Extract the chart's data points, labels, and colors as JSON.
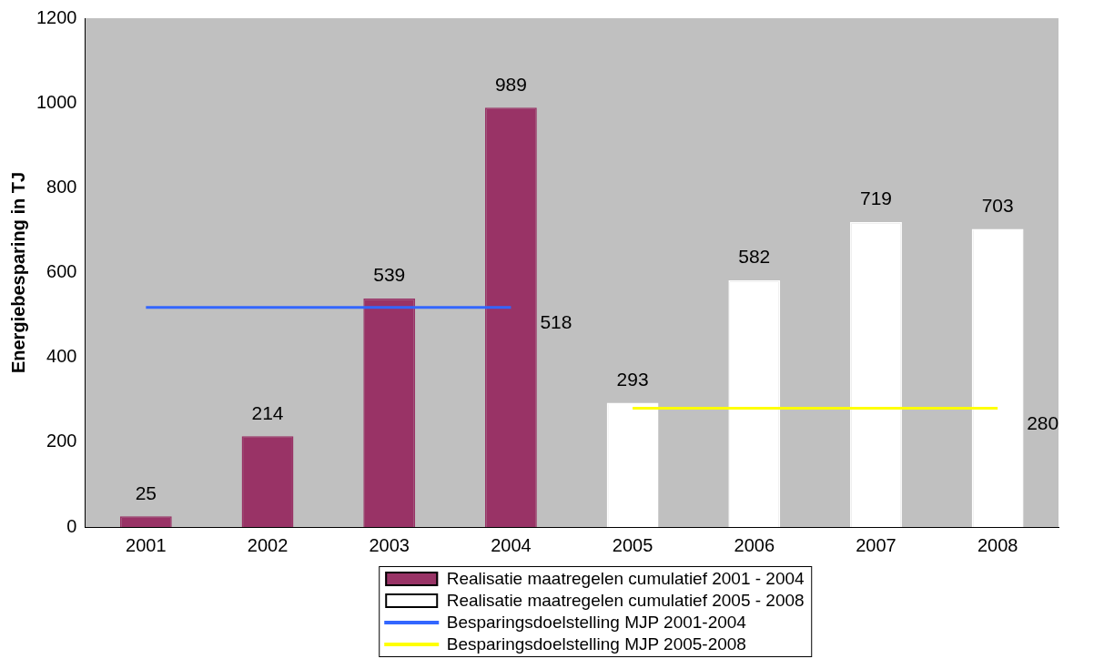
{
  "chart_data": {
    "type": "bar",
    "ylabel": "Energiebesparing in TJ",
    "categories": [
      "2001",
      "2002",
      "2003",
      "2004",
      "2005",
      "2006",
      "2007",
      "2008"
    ],
    "series": [
      {
        "name": "Realisatie maatregelen cumulatief 2001 - 2004",
        "color": "#993366",
        "values": [
          25,
          214,
          539,
          989,
          null,
          null,
          null,
          null
        ],
        "value_labels": [
          "25",
          "214",
          "539",
          "989",
          null,
          null,
          null,
          null
        ]
      },
      {
        "name": "Realisatie maatregelen cumulatief 2005 - 2008",
        "color": "#ffffff",
        "values": [
          null,
          null,
          null,
          null,
          293,
          582,
          719,
          703
        ],
        "value_labels": [
          null,
          null,
          null,
          null,
          "293",
          "582",
          "719",
          "703"
        ]
      },
      {
        "name": "Besparingsdoelstelling MJP 2001-2004",
        "type": "line",
        "color": "#3366ff",
        "values": [
          518,
          518,
          518,
          518,
          null,
          null,
          null,
          null
        ],
        "value_labels": [
          null,
          null,
          null,
          "518",
          null,
          null,
          null,
          null
        ]
      },
      {
        "name": "Besparingsdoelstelling MJP 2005-2008",
        "type": "line",
        "color": "#ffff00",
        "values": [
          null,
          null,
          null,
          null,
          280,
          280,
          280,
          280
        ],
        "value_labels": [
          null,
          null,
          null,
          null,
          null,
          null,
          null,
          "280"
        ]
      }
    ],
    "ylim": [
      0,
      1200
    ],
    "yticks": [
      0,
      200,
      400,
      600,
      800,
      1000,
      1200
    ],
    "grid": false,
    "legend": "bottom",
    "marker": "none"
  }
}
